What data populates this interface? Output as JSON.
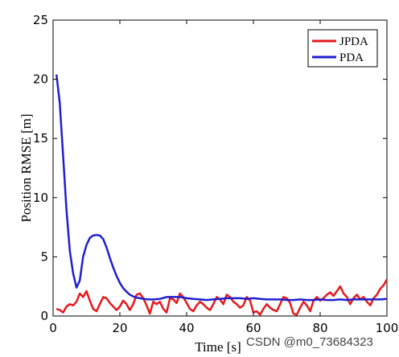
{
  "chart_data": {
    "type": "line",
    "xlabel": "Time [s]",
    "ylabel": "Position RMSE [m]",
    "xlim": [
      0,
      100
    ],
    "ylim": [
      0,
      25
    ],
    "xticks": [
      0,
      20,
      40,
      60,
      80,
      100
    ],
    "yticks": [
      0,
      5,
      10,
      15,
      20,
      25
    ],
    "grid": false,
    "legend_position": "top-right",
    "series": [
      {
        "name": "JPDA",
        "color": "#e41a1c",
        "x": [
          1,
          2,
          3,
          4,
          5,
          6,
          7,
          8,
          9,
          10,
          11,
          12,
          13,
          14,
          15,
          16,
          17,
          18,
          19,
          20,
          21,
          22,
          23,
          24,
          25,
          26,
          27,
          28,
          29,
          30,
          31,
          32,
          33,
          34,
          35,
          36,
          37,
          38,
          39,
          40,
          41,
          42,
          43,
          44,
          45,
          46,
          47,
          48,
          49,
          50,
          51,
          52,
          53,
          54,
          55,
          56,
          57,
          58,
          59,
          60,
          61,
          62,
          63,
          64,
          65,
          66,
          67,
          68,
          69,
          70,
          71,
          72,
          73,
          74,
          75,
          76,
          77,
          78,
          79,
          80,
          81,
          82,
          83,
          84,
          85,
          86,
          87,
          88,
          89,
          90,
          91,
          92,
          93,
          94,
          95,
          96,
          97,
          98,
          99,
          100
        ],
        "y": [
          0.6,
          0.5,
          0.3,
          0.8,
          1.0,
          0.9,
          1.2,
          1.9,
          1.6,
          2.1,
          1.3,
          0.6,
          0.4,
          1.0,
          1.6,
          1.5,
          1.1,
          0.8,
          0.5,
          0.8,
          1.3,
          1.0,
          0.5,
          1.0,
          1.8,
          1.9,
          1.5,
          0.9,
          0.2,
          1.2,
          1.0,
          1.2,
          0.6,
          0.3,
          1.5,
          1.4,
          1.1,
          1.9,
          1.6,
          1.1,
          0.6,
          0.4,
          0.9,
          1.2,
          1.0,
          0.7,
          0.5,
          1.0,
          1.6,
          1.4,
          1.0,
          1.8,
          1.6,
          1.2,
          1.0,
          0.7,
          0.9,
          1.6,
          1.3,
          0.3,
          0.4,
          0.1,
          0.6,
          1.0,
          0.7,
          0.5,
          0.4,
          1.0,
          1.6,
          1.5,
          1.1,
          0.2,
          0.1,
          0.7,
          1.2,
          0.9,
          0.4,
          1.3,
          1.6,
          1.3,
          1.5,
          1.8,
          2.0,
          1.7,
          2.1,
          2.5,
          1.9,
          1.6,
          1.0,
          1.5,
          1.8,
          1.4,
          1.6,
          1.2,
          0.9,
          1.5,
          1.8,
          2.3,
          2.6,
          3.1
        ]
      },
      {
        "name": "PDA",
        "color": "#1f1fd0",
        "x": [
          1,
          2,
          3,
          4,
          5,
          6,
          7,
          8,
          9,
          10,
          11,
          12,
          13,
          14,
          15,
          16,
          17,
          18,
          19,
          20,
          21,
          22,
          23,
          24,
          25,
          26,
          27,
          28,
          29,
          30,
          32,
          34,
          36,
          38,
          40,
          42,
          44,
          46,
          48,
          50,
          52,
          54,
          56,
          58,
          60,
          62,
          64,
          66,
          68,
          70,
          72,
          74,
          76,
          78,
          80,
          82,
          84,
          86,
          88,
          90,
          92,
          94,
          96,
          98,
          100
        ],
        "y": [
          20.4,
          18.0,
          13.5,
          9.0,
          5.5,
          3.6,
          2.4,
          3.0,
          5.0,
          6.0,
          6.6,
          6.8,
          6.85,
          6.8,
          6.5,
          5.8,
          4.9,
          4.1,
          3.4,
          2.8,
          2.35,
          2.05,
          1.8,
          1.65,
          1.55,
          1.5,
          1.45,
          1.42,
          1.4,
          1.4,
          1.45,
          1.6,
          1.6,
          1.6,
          1.5,
          1.45,
          1.4,
          1.35,
          1.4,
          1.45,
          1.5,
          1.5,
          1.5,
          1.45,
          1.5,
          1.45,
          1.4,
          1.4,
          1.4,
          1.35,
          1.35,
          1.4,
          1.35,
          1.35,
          1.4,
          1.35,
          1.35,
          1.4,
          1.35,
          1.4,
          1.4,
          1.4,
          1.4,
          1.4,
          1.45
        ]
      }
    ]
  },
  "watermark": "CSDN @m0_73684323"
}
